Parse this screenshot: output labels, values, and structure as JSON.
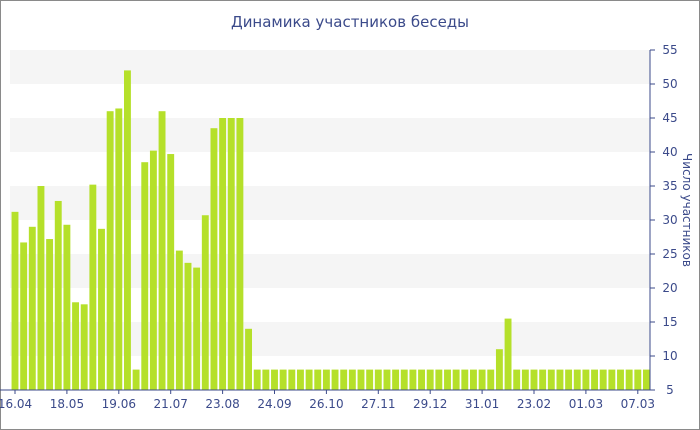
{
  "chart_data": {
    "type": "bar",
    "title": "Динамика участников беседы",
    "ylabel": "Число участников",
    "xlabel": "",
    "ylim": [
      5,
      55
    ],
    "y_ticks": [
      5,
      10,
      15,
      20,
      25,
      30,
      35,
      40,
      45,
      50,
      55
    ],
    "x_tick_labels": [
      {
        "label": "16.04",
        "index": 0
      },
      {
        "label": "18.05",
        "index": 6
      },
      {
        "label": "19.06",
        "index": 12
      },
      {
        "label": "21.07",
        "index": 18
      },
      {
        "label": "23.08",
        "index": 24
      },
      {
        "label": "24.09",
        "index": 30
      },
      {
        "label": "26.10",
        "index": 36
      },
      {
        "label": "27.11",
        "index": 42
      },
      {
        "label": "29.12",
        "index": 48
      },
      {
        "label": "31.01",
        "index": 54
      },
      {
        "label": "23.02",
        "index": 60
      },
      {
        "label": "01.03",
        "index": 66
      },
      {
        "label": "07.03",
        "index": 72
      }
    ],
    "bar_color": "#b5e02a",
    "grid_band_color": "#f5f5f5",
    "values": [
      31.2,
      26.7,
      29,
      35,
      27.2,
      32.8,
      29.3,
      17.9,
      17.6,
      35.2,
      28.7,
      46,
      46.4,
      52,
      8,
      38.5,
      40.2,
      46,
      39.7,
      25.5,
      23.7,
      23,
      30.7,
      43.5,
      45,
      45,
      45,
      14,
      8,
      8,
      8,
      8,
      8,
      8,
      8,
      8,
      8,
      8,
      8,
      8,
      8,
      8,
      8,
      8,
      8,
      8,
      8,
      8,
      8,
      8,
      8,
      8,
      8,
      8,
      8,
      8,
      11,
      15.5,
      8,
      8,
      8,
      8,
      8,
      8,
      8,
      8,
      8,
      8,
      8,
      8,
      8,
      8,
      8,
      8
    ]
  }
}
